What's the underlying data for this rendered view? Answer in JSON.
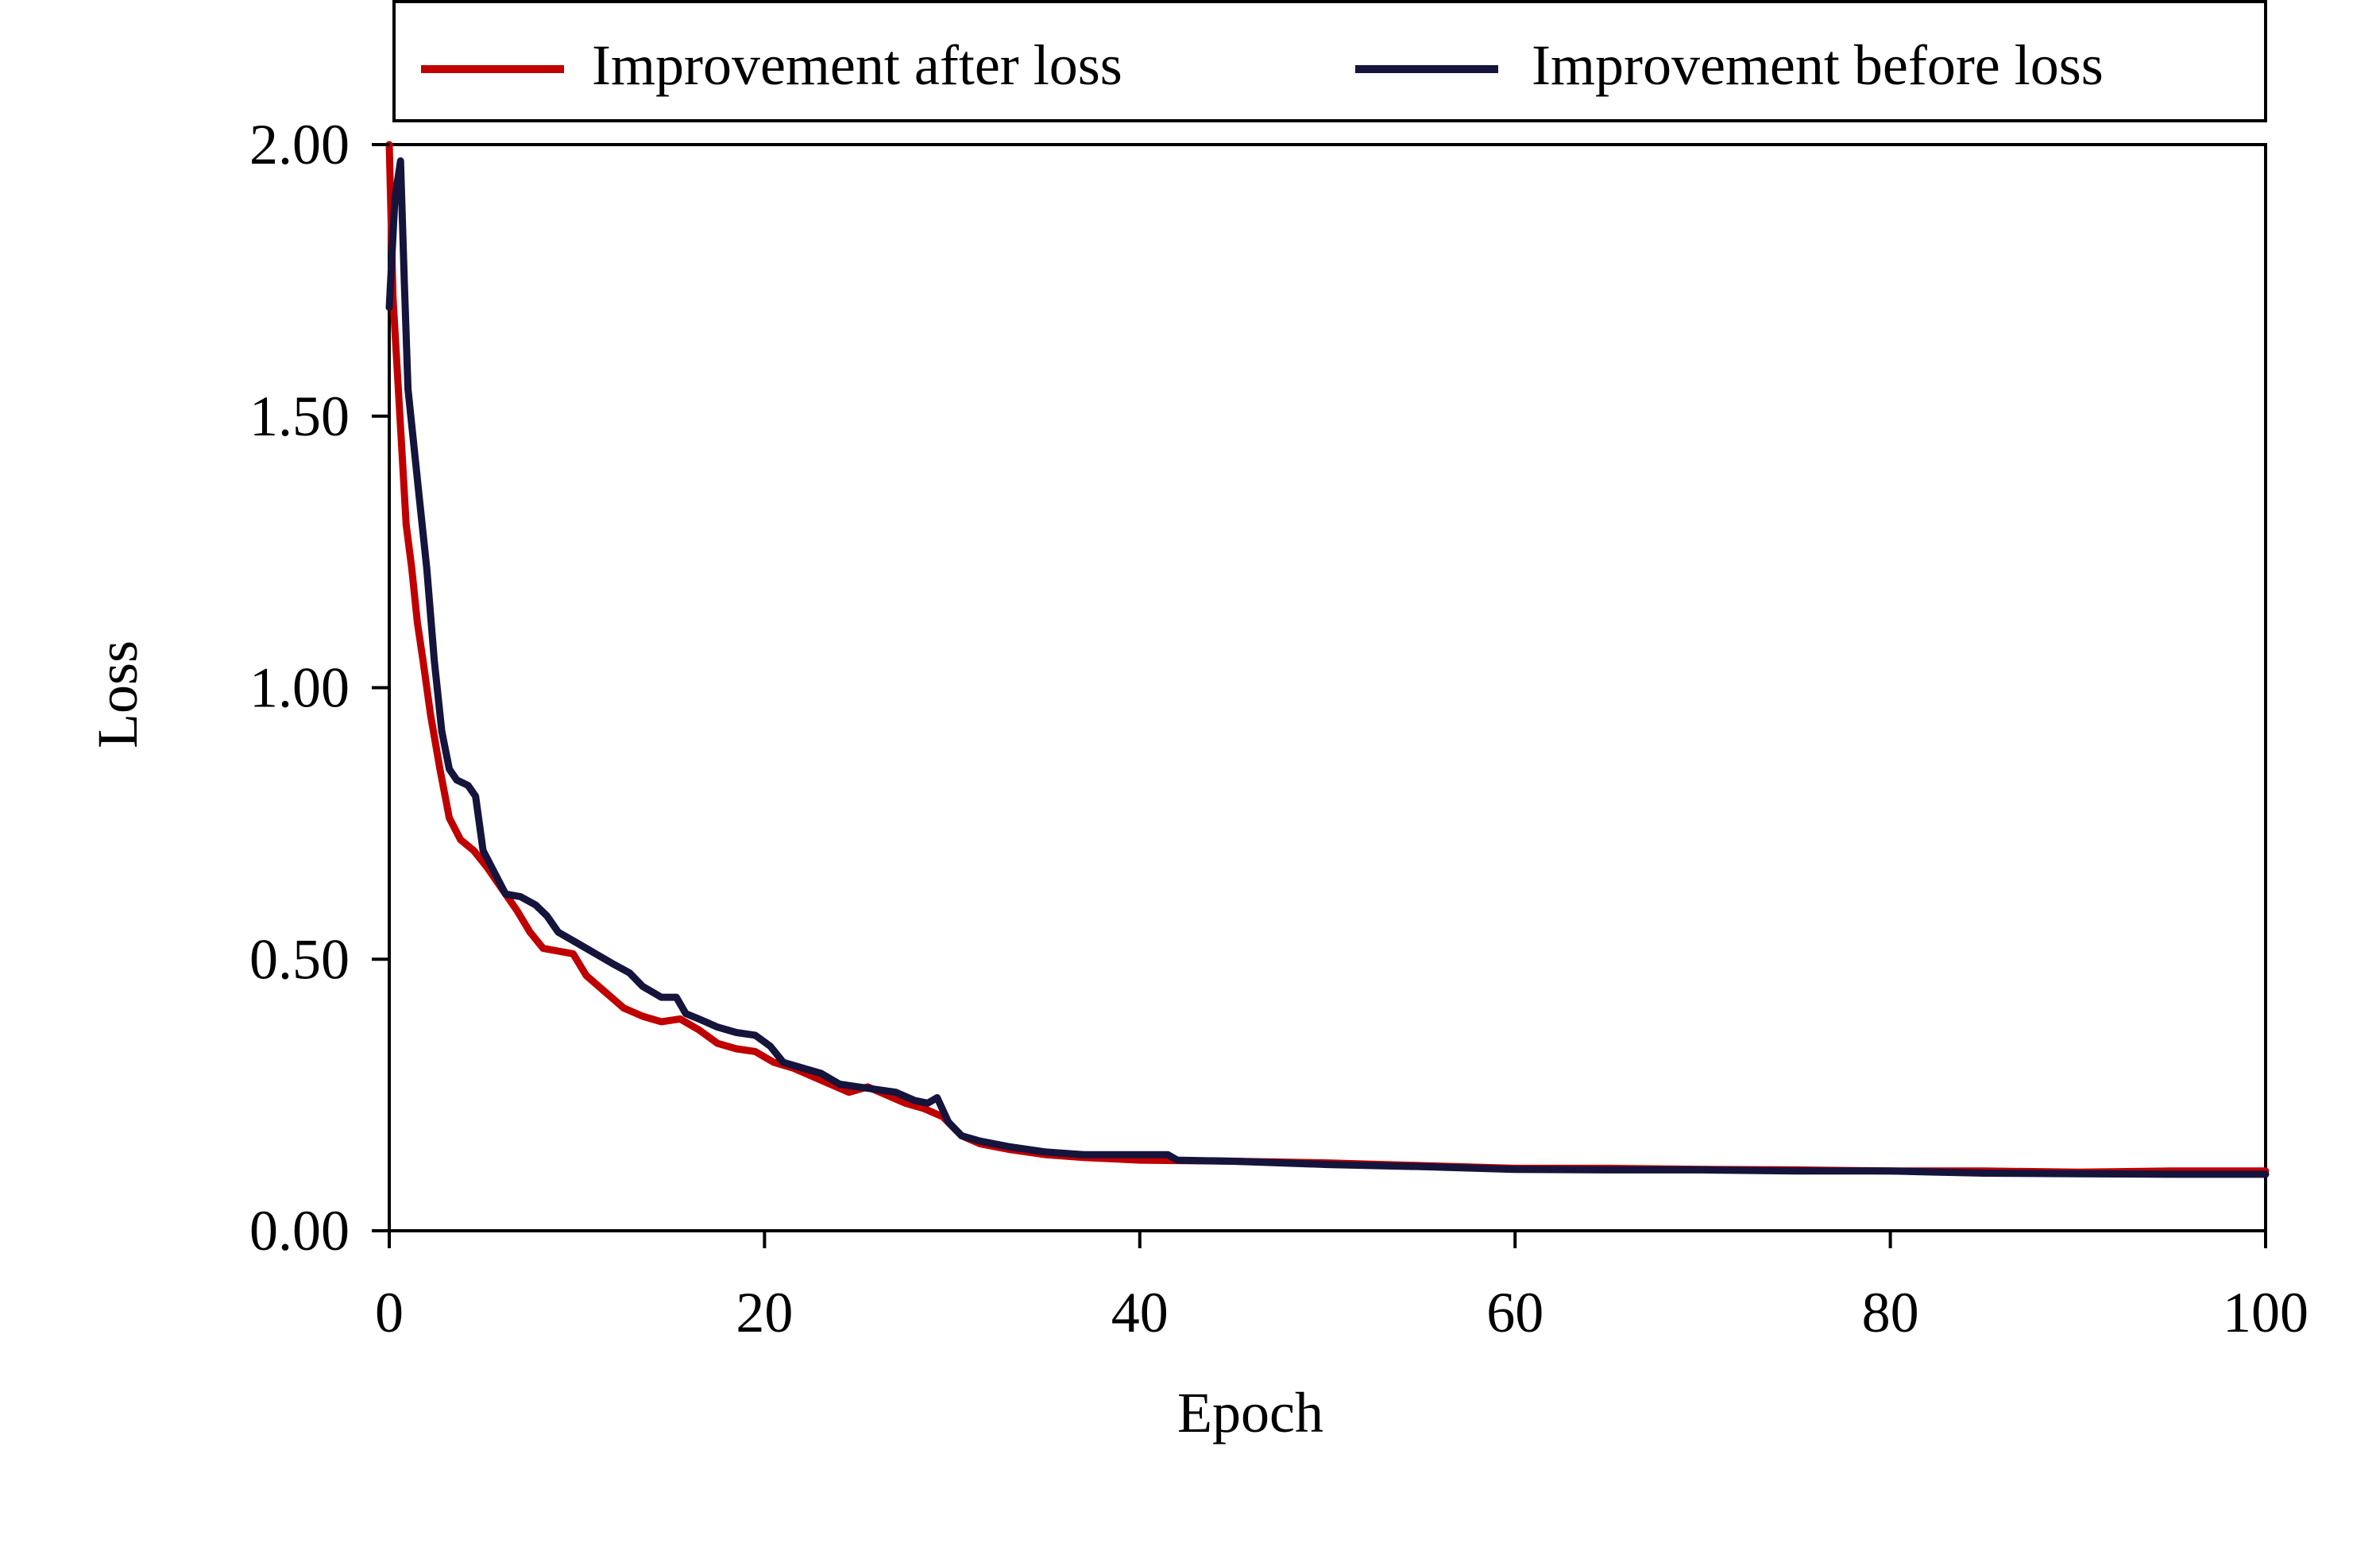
{
  "chart_data": {
    "type": "line",
    "xlabel": "Epoch",
    "ylabel": "Loss",
    "xlim": [
      0,
      100
    ],
    "ylim": [
      0,
      2
    ],
    "xticks": [
      0,
      20,
      40,
      60,
      80,
      100
    ],
    "yticks": [
      0.0,
      0.5,
      1.0,
      1.5,
      2.0
    ],
    "xtick_labels": [
      "0",
      "20",
      "40",
      "60",
      "80",
      "100"
    ],
    "ytick_labels": [
      "0.00",
      "0.50",
      "1.00",
      "1.50",
      "2.00"
    ],
    "grid": false,
    "legend_position": "top",
    "series": [
      {
        "name": "Improvement after loss",
        "color": "#c00000",
        "points": [
          [
            0,
            2.0
          ],
          [
            0.2,
            1.72
          ],
          [
            0.6,
            1.48
          ],
          [
            0.9,
            1.3
          ],
          [
            1.2,
            1.22
          ],
          [
            1.5,
            1.12
          ],
          [
            1.8,
            1.05
          ],
          [
            2.2,
            0.95
          ],
          [
            2.7,
            0.85
          ],
          [
            3.2,
            0.76
          ],
          [
            3.8,
            0.72
          ],
          [
            4.5,
            0.7
          ],
          [
            5.2,
            0.67
          ],
          [
            6.0,
            0.63
          ],
          [
            6.8,
            0.59
          ],
          [
            7.5,
            0.55
          ],
          [
            8.2,
            0.52
          ],
          [
            9.0,
            0.515
          ],
          [
            9.8,
            0.51
          ],
          [
            10.5,
            0.47
          ],
          [
            11.5,
            0.44
          ],
          [
            12.5,
            0.41
          ],
          [
            13.5,
            0.395
          ],
          [
            14.5,
            0.385
          ],
          [
            15.5,
            0.39
          ],
          [
            16.5,
            0.37
          ],
          [
            17.5,
            0.345
          ],
          [
            18.5,
            0.335
          ],
          [
            19.5,
            0.33
          ],
          [
            20.5,
            0.31
          ],
          [
            21.5,
            0.3
          ],
          [
            22.5,
            0.285
          ],
          [
            23.5,
            0.27
          ],
          [
            24.5,
            0.255
          ],
          [
            25.5,
            0.265
          ],
          [
            26.5,
            0.25
          ],
          [
            27.5,
            0.235
          ],
          [
            28.5,
            0.225
          ],
          [
            29.5,
            0.21
          ],
          [
            30.5,
            0.175
          ],
          [
            31.5,
            0.16
          ],
          [
            33,
            0.15
          ],
          [
            35,
            0.14
          ],
          [
            37,
            0.135
          ],
          [
            40,
            0.13
          ],
          [
            45,
            0.128
          ],
          [
            50,
            0.125
          ],
          [
            55,
            0.12
          ],
          [
            60,
            0.115
          ],
          [
            65,
            0.115
          ],
          [
            70,
            0.113
          ],
          [
            75,
            0.112
          ],
          [
            80,
            0.11
          ],
          [
            85,
            0.11
          ],
          [
            90,
            0.108
          ],
          [
            95,
            0.11
          ],
          [
            100,
            0.11
          ]
        ]
      },
      {
        "name": "Improvement before loss",
        "color": "#14143c",
        "points": [
          [
            0,
            1.7
          ],
          [
            0.3,
            1.9
          ],
          [
            0.6,
            1.97
          ],
          [
            0.8,
            1.75
          ],
          [
            1.0,
            1.55
          ],
          [
            1.3,
            1.45
          ],
          [
            1.6,
            1.35
          ],
          [
            2.0,
            1.22
          ],
          [
            2.4,
            1.05
          ],
          [
            2.8,
            0.92
          ],
          [
            3.2,
            0.85
          ],
          [
            3.6,
            0.83
          ],
          [
            4.2,
            0.82
          ],
          [
            4.6,
            0.8
          ],
          [
            5.0,
            0.7
          ],
          [
            5.6,
            0.66
          ],
          [
            6.2,
            0.62
          ],
          [
            7.0,
            0.615
          ],
          [
            7.8,
            0.6
          ],
          [
            8.4,
            0.58
          ],
          [
            9.0,
            0.55
          ],
          [
            10.0,
            0.53
          ],
          [
            11.0,
            0.51
          ],
          [
            12.0,
            0.49
          ],
          [
            12.8,
            0.475
          ],
          [
            13.5,
            0.45
          ],
          [
            14.5,
            0.43
          ],
          [
            15.3,
            0.43
          ],
          [
            15.8,
            0.4
          ],
          [
            16.5,
            0.39
          ],
          [
            17.5,
            0.375
          ],
          [
            18.5,
            0.365
          ],
          [
            19.5,
            0.36
          ],
          [
            20.3,
            0.34
          ],
          [
            21.0,
            0.31
          ],
          [
            22.0,
            0.3
          ],
          [
            23.0,
            0.29
          ],
          [
            24.0,
            0.27
          ],
          [
            25.0,
            0.265
          ],
          [
            26.0,
            0.26
          ],
          [
            27.0,
            0.255
          ],
          [
            28.0,
            0.24
          ],
          [
            28.7,
            0.235
          ],
          [
            29.2,
            0.245
          ],
          [
            29.8,
            0.2
          ],
          [
            30.5,
            0.175
          ],
          [
            31.5,
            0.165
          ],
          [
            33,
            0.155
          ],
          [
            35,
            0.145
          ],
          [
            37,
            0.14
          ],
          [
            40,
            0.14
          ],
          [
            41.5,
            0.14
          ],
          [
            42,
            0.13
          ],
          [
            45,
            0.128
          ],
          [
            50,
            0.122
          ],
          [
            55,
            0.118
          ],
          [
            60,
            0.113
          ],
          [
            65,
            0.112
          ],
          [
            70,
            0.112
          ],
          [
            75,
            0.11
          ],
          [
            80,
            0.11
          ],
          [
            85,
            0.106
          ],
          [
            90,
            0.105
          ],
          [
            95,
            0.104
          ],
          [
            100,
            0.104
          ]
        ]
      }
    ]
  }
}
